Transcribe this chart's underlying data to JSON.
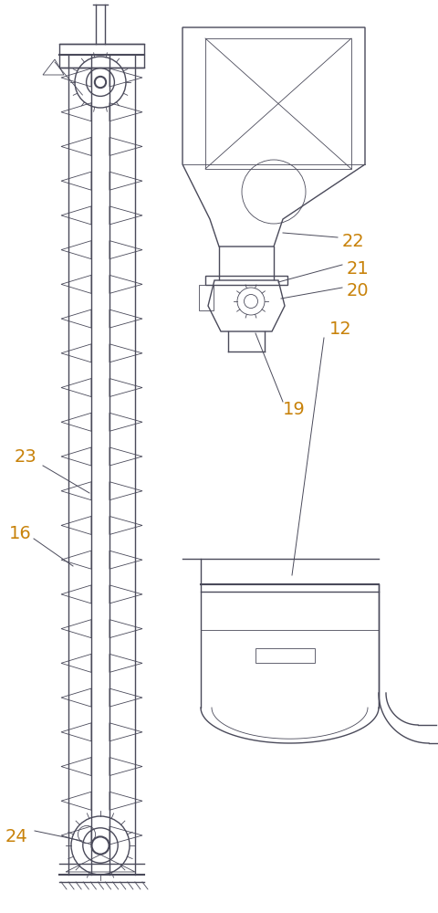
{
  "bg_color": "#ffffff",
  "line_color": "#4a4a5a",
  "label_color": "#c8820a",
  "line_width": 1.0,
  "thin_lw": 0.6,
  "fig_w": 4.8,
  "fig_h": 10.0
}
